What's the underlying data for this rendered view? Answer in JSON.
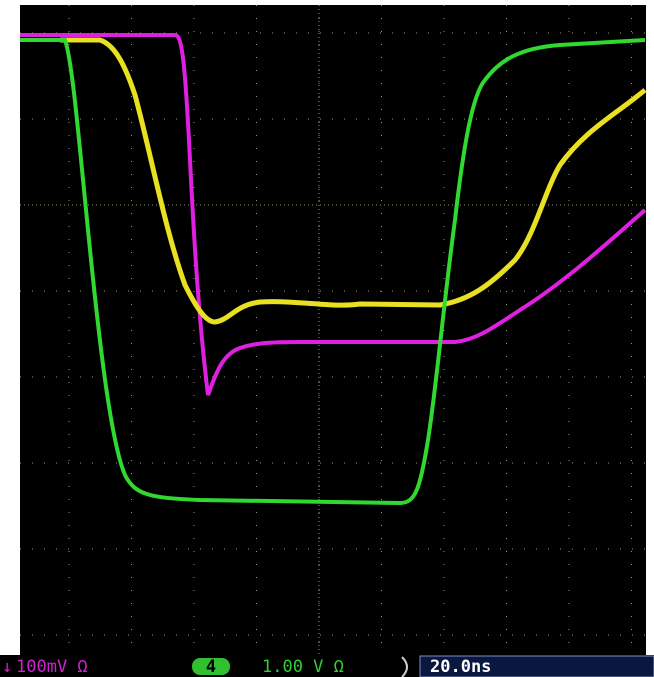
{
  "status_bar": {
    "ch_scale": "100mV Ω",
    "channel": "4",
    "ch4_scale": "1.00 V Ω",
    "timebase": "20.0ns"
  }
}
